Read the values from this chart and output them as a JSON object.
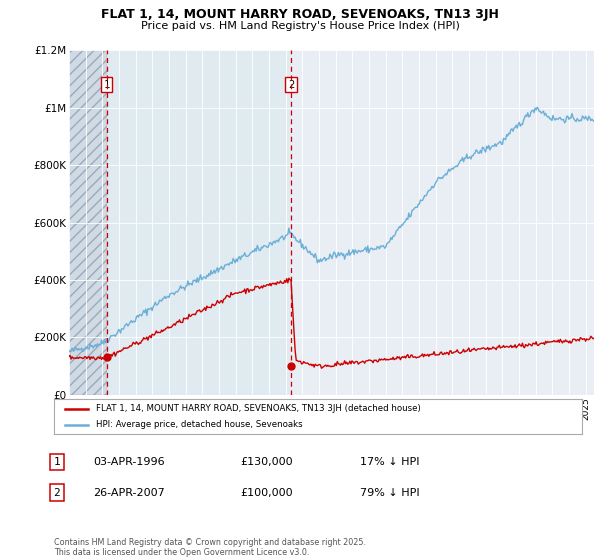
{
  "title": "FLAT 1, 14, MOUNT HARRY ROAD, SEVENOAKS, TN13 3JH",
  "subtitle": "Price paid vs. HM Land Registry's House Price Index (HPI)",
  "xmin": 1994.0,
  "xmax": 2025.5,
  "ymin": 0,
  "ymax": 1200000,
  "yticks": [
    0,
    200000,
    400000,
    600000,
    800000,
    1000000,
    1200000
  ],
  "ytick_labels": [
    "£0",
    "£200K",
    "£400K",
    "£600K",
    "£800K",
    "£1M",
    "£1.2M"
  ],
  "hpi_color": "#6baed6",
  "price_color": "#cc0000",
  "sale1_x": 1996.26,
  "sale1_y": 130000,
  "sale1_label": "1",
  "sale1_date": "03-APR-1996",
  "sale1_price": "£130,000",
  "sale1_hpi": "17% ↓ HPI",
  "sale2_x": 2007.32,
  "sale2_y": 100000,
  "sale2_label": "2",
  "sale2_date": "26-APR-2007",
  "sale2_price": "£100,000",
  "sale2_hpi": "79% ↓ HPI",
  "legend_line1": "FLAT 1, 14, MOUNT HARRY ROAD, SEVENOAKS, TN13 3JH (detached house)",
  "legend_line2": "HPI: Average price, detached house, Sevenoaks",
  "footnote": "Contains HM Land Registry data © Crown copyright and database right 2025.\nThis data is licensed under the Open Government Licence v3.0.",
  "bg_color": "#ffffff",
  "plot_bg": "#e8eef4"
}
